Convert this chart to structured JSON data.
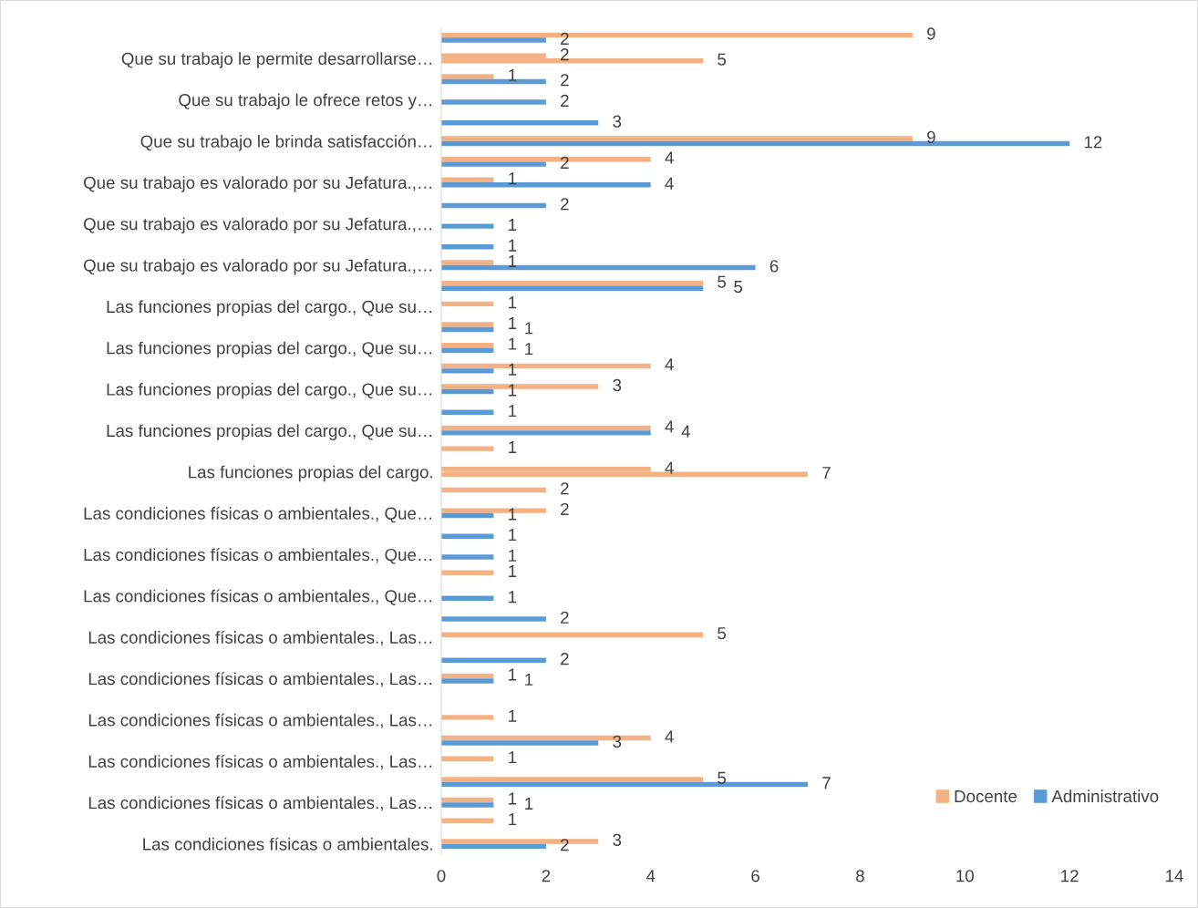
{
  "chart_data": {
    "type": "bar",
    "orientation": "horizontal",
    "data_labels": true,
    "legend": "bottom right",
    "grid": false,
    "categories": [
      null,
      "Que su trabajo le permite desarrollarse…",
      null,
      "Que su trabajo le ofrece retos y…",
      null,
      "Que su trabajo le brinda satisfacción…",
      null,
      "Que su trabajo es valorado por su Jefatura.,…",
      null,
      "Que su trabajo es valorado por su Jefatura.,…",
      null,
      "Que su trabajo es valorado por su Jefatura.,…",
      null,
      "Las funciones propias del cargo., Que su…",
      null,
      "Las funciones propias del cargo., Que su…",
      null,
      "Las funciones propias del cargo., Que su…",
      null,
      "Las funciones propias del cargo., Que su…",
      null,
      "Las funciones propias del cargo.",
      null,
      "Las condiciones físicas o ambientales., Que…",
      null,
      "Las condiciones físicas o ambientales., Que…",
      null,
      "Las condiciones físicas o ambientales., Que…",
      null,
      "Las condiciones físicas o ambientales., Las…",
      null,
      "Las condiciones físicas o ambientales., Las…",
      null,
      "Las condiciones físicas o ambientales., Las…",
      null,
      "Las condiciones físicas o ambientales., Las…",
      null,
      "Las condiciones físicas o ambientales., Las…",
      null,
      "Las condiciones físicas o ambientales."
    ],
    "series": [
      {
        "name": "Docente",
        "color": "#f4b183",
        "values": [
          9,
          2,
          1,
          null,
          null,
          9,
          4,
          1,
          null,
          null,
          null,
          1,
          5,
          1,
          1,
          1,
          4,
          3,
          null,
          4,
          1,
          4,
          2,
          2,
          null,
          null,
          1,
          null,
          null,
          5,
          null,
          1,
          null,
          1,
          4,
          1,
          5,
          1,
          1,
          3
        ]
      },
      {
        "name": "Administrativo",
        "color": "#5b9bd5",
        "colors": [
          "#5b9bd5",
          "#f4b183",
          "#5b9bd5",
          "#5b9bd5",
          "#5b9bd5",
          "#5b9bd5",
          "#5b9bd5",
          "#5b9bd5",
          "#5b9bd5",
          "#5b9bd5",
          "#5b9bd5",
          "#5b9bd5",
          "#5b9bd5",
          "#5b9bd5",
          "#5b9bd5",
          "#5b9bd5",
          "#5b9bd5",
          "#5b9bd5",
          "#5b9bd5",
          "#5b9bd5",
          "#5b9bd5",
          "#f4b183",
          "#5b9bd5",
          "#5b9bd5",
          "#5b9bd5",
          "#5b9bd5",
          "#5b9bd5",
          "#5b9bd5",
          "#5b9bd5",
          "#5b9bd5",
          "#5b9bd5",
          "#5b9bd5",
          "#5b9bd5",
          "#5b9bd5",
          "#5b9bd5",
          "#5b9bd5",
          "#5b9bd5",
          "#5b9bd5",
          "#5b9bd5",
          "#5b9bd5"
        ],
        "values": [
          2,
          5,
          2,
          2,
          3,
          12,
          2,
          4,
          2,
          1,
          1,
          6,
          5,
          null,
          1,
          1,
          1,
          1,
          1,
          4,
          null,
          7,
          null,
          1,
          1,
          1,
          null,
          1,
          2,
          null,
          2,
          1,
          null,
          null,
          3,
          null,
          7,
          1,
          null,
          2
        ]
      }
    ],
    "xlim": [
      0,
      14
    ],
    "xticks": [
      0,
      2,
      4,
      6,
      8,
      10,
      12,
      14
    ]
  }
}
